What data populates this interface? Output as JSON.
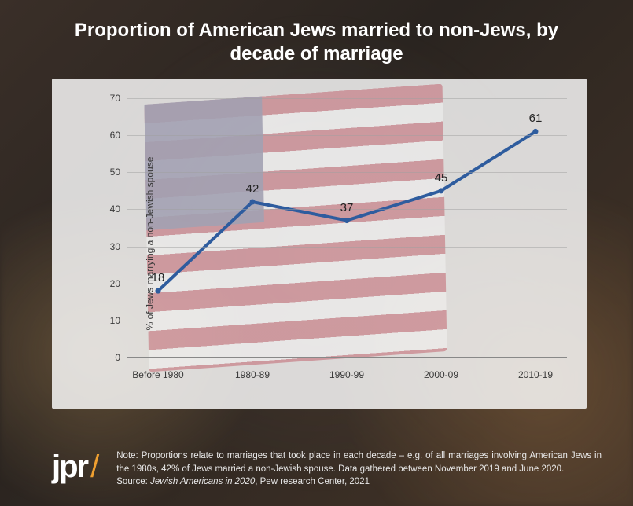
{
  "title": "Proportion of American Jews married to non-Jews, by decade of marriage",
  "chart": {
    "type": "line",
    "y_axis_label": "% of Jews marrying a non-Jewish spouse",
    "ylim": [
      0,
      70
    ],
    "ytick_step": 10,
    "yticks": [
      0,
      10,
      20,
      30,
      40,
      50,
      60,
      70
    ],
    "categories": [
      "Before 1980",
      "1980-89",
      "1990-99",
      "2000-09",
      "2010-19"
    ],
    "values": [
      18,
      42,
      37,
      45,
      61
    ],
    "line_color": "#2e5c9e",
    "line_width": 4,
    "marker_color": "#2e5c9e",
    "marker_size": 7,
    "grid_color": "rgba(160,160,160,0.5)",
    "background_color": "rgba(255,255,255,0.82)",
    "label_fontsize": 15,
    "tick_fontsize": 12
  },
  "footer": {
    "logo_text": "jpr",
    "logo_slash": "/",
    "note": "Note: Proportions relate to marriages that took place in each decade – e.g. of all marriages involving American Jews in the 1980s, 42% of Jews married a non-Jewish spouse. Data gathered between November 2019 and June 2020.",
    "source_prefix": "Source: ",
    "source_italic": "Jewish Americans in 2020",
    "source_suffix": ", Pew research Center, 2021"
  }
}
